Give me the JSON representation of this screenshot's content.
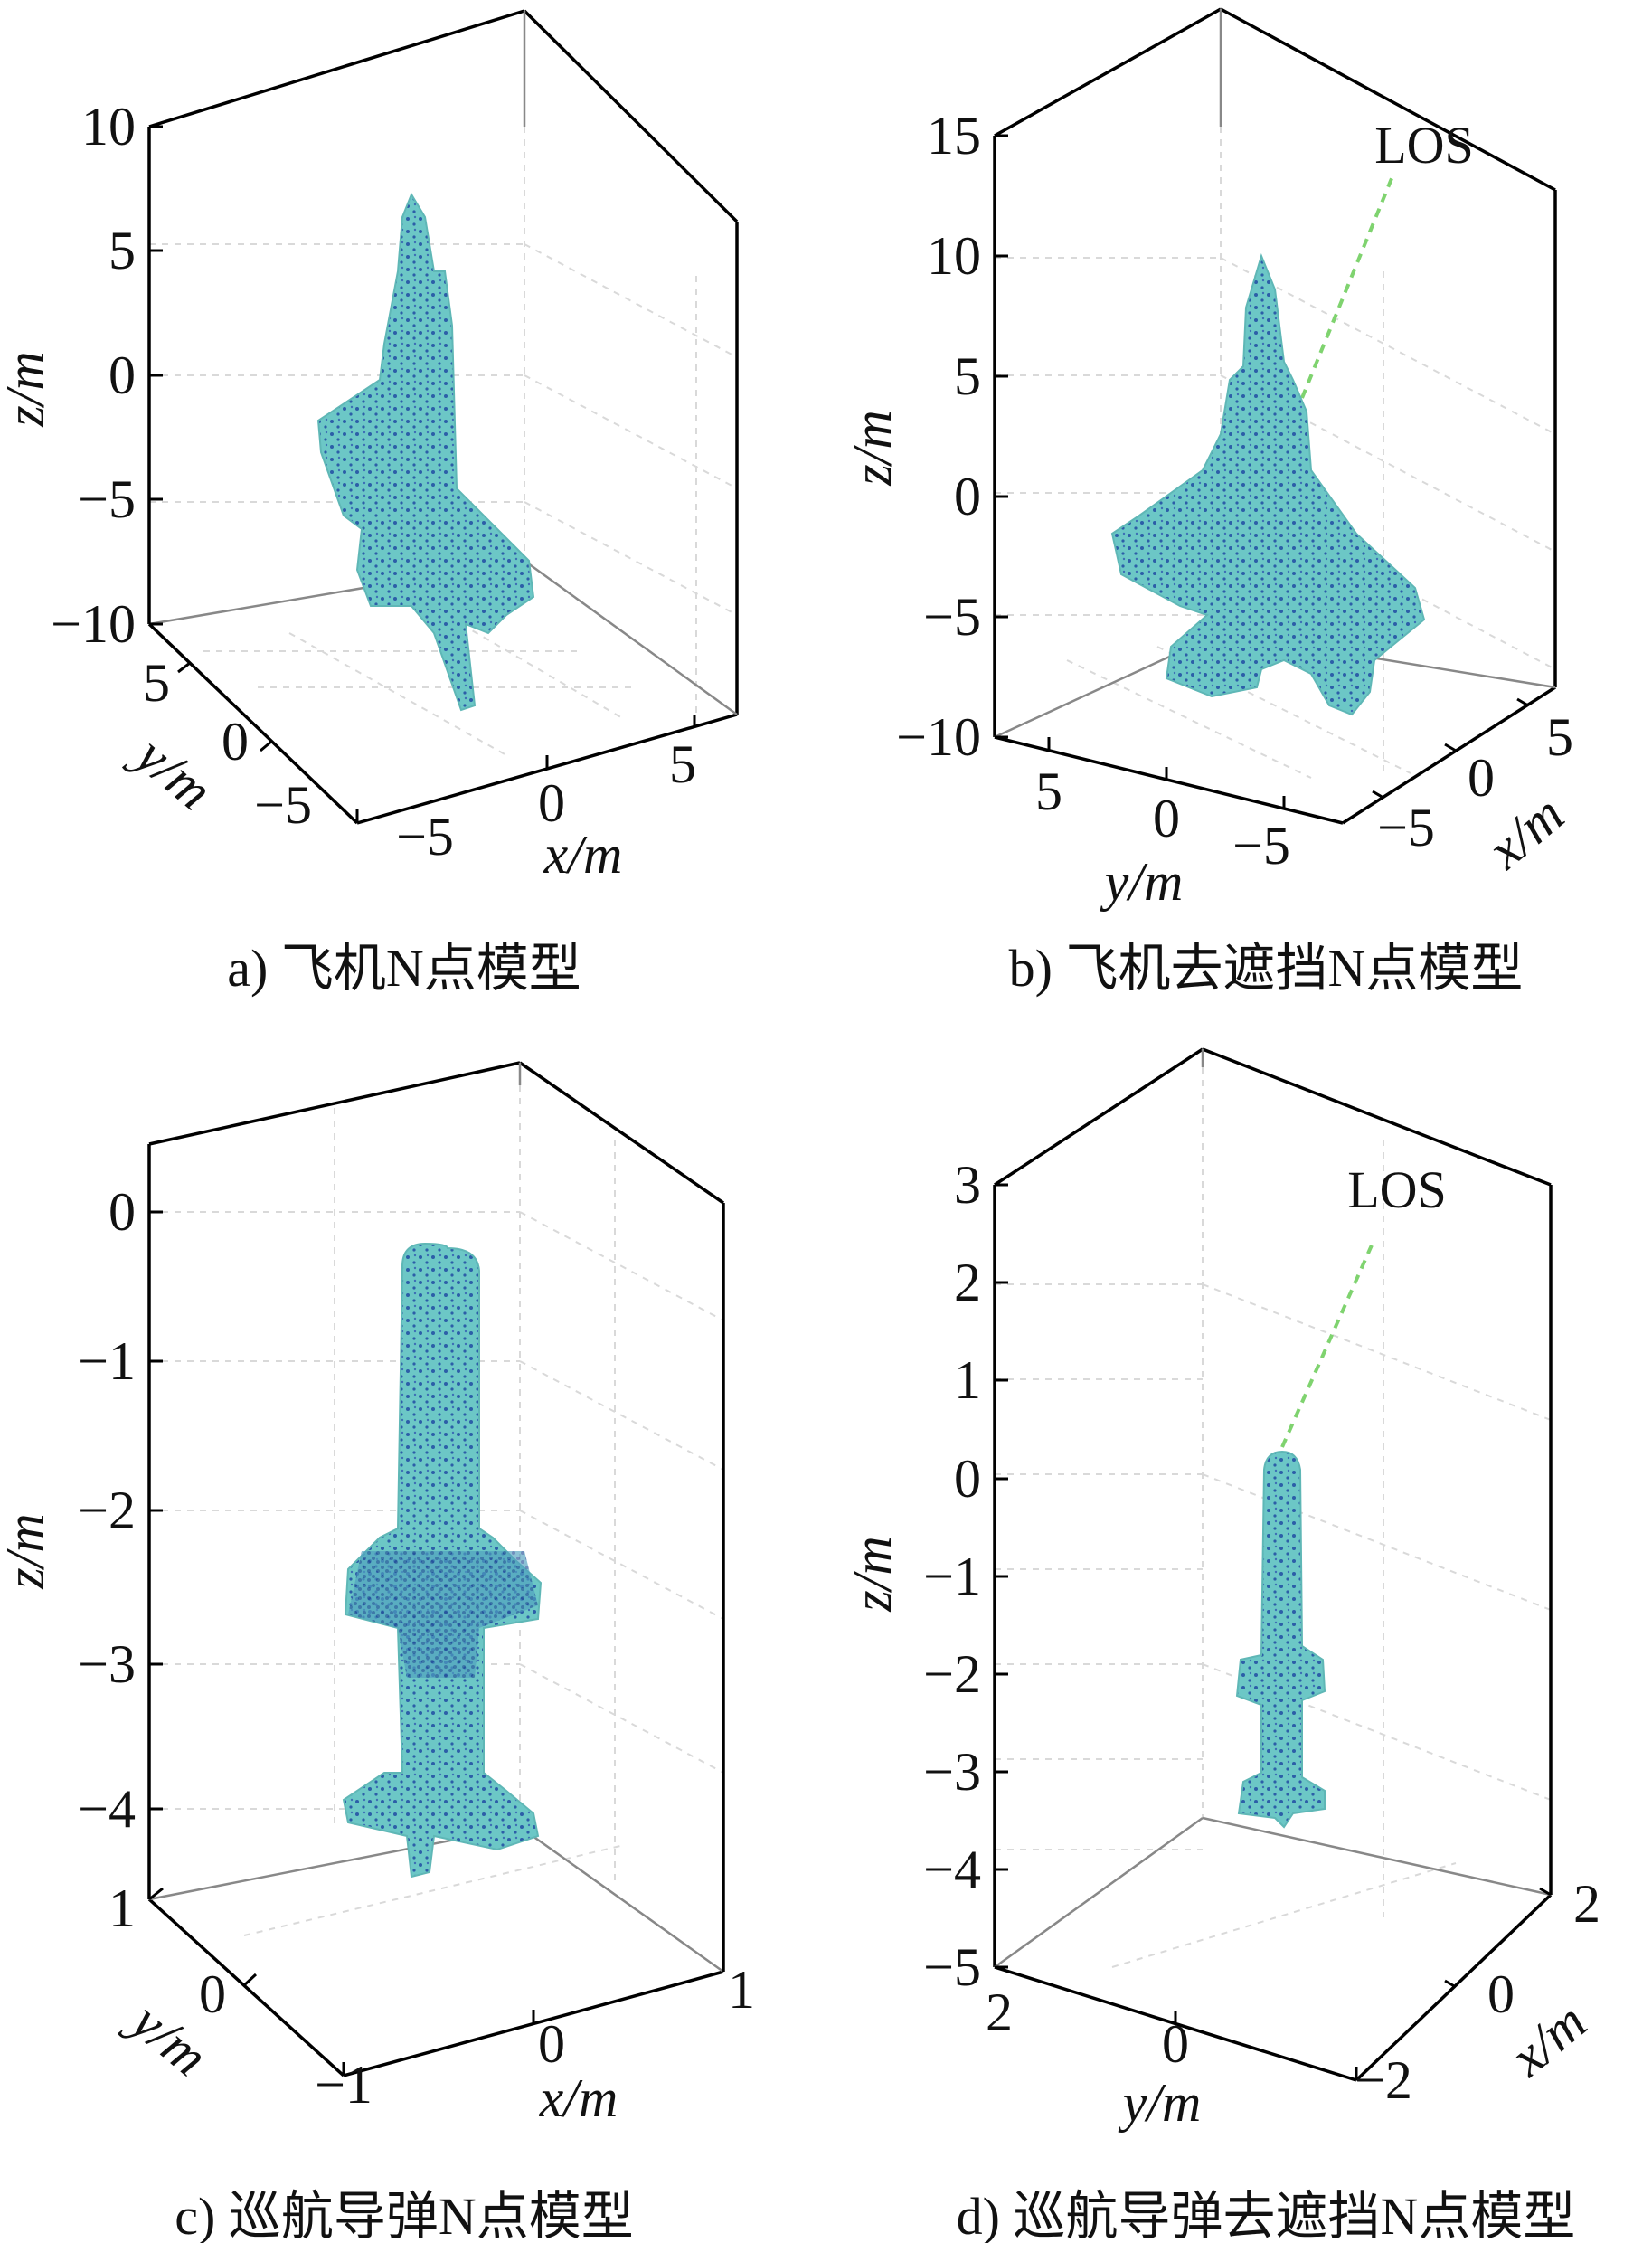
{
  "chart_data": [
    {
      "type": "scatter",
      "id": "a",
      "caption": "a) 飞机N点模型",
      "xlabel": "x/m",
      "ylabel": "y/m",
      "zlabel": "z/m",
      "z_ticks": [
        "10",
        "5",
        "0",
        "−5",
        "−10"
      ],
      "y_ticks": [
        "5",
        "0",
        "−5"
      ],
      "x_ticks": [
        "−5",
        "0",
        "5"
      ],
      "zlim": [
        -10,
        10
      ],
      "ylim": [
        -6,
        6
      ],
      "xlim": [
        -7,
        7
      ],
      "grid": true,
      "series": [
        {
          "values": [],
          "color": "#6cc7c6",
          "edge_color": "#2a5aa5"
        }
      ]
    },
    {
      "type": "scatter",
      "id": "b",
      "caption": "b) 飞机去遮挡N点模型",
      "xlabel": "x/m",
      "ylabel": "y/m",
      "zlabel": "z/m",
      "annotation": "LOS",
      "z_ticks": [
        "15",
        "10",
        "5",
        "0",
        "−5",
        "−10"
      ],
      "y_ticks": [
        "5",
        "0",
        "−5"
      ],
      "x_ticks": [
        "5",
        "0",
        "−5"
      ],
      "zlim": [
        -10,
        15
      ],
      "ylim": [
        -6,
        6
      ],
      "xlim": [
        -6,
        6
      ],
      "grid": true,
      "series": [
        {
          "values": [],
          "color": "#6cc7c6",
          "edge_color": "#2a5aa5"
        }
      ]
    },
    {
      "type": "scatter",
      "id": "c",
      "caption": "c) 巡航导弹N点模型",
      "xlabel": "x/m",
      "ylabel": "y/m",
      "zlabel": "z/m",
      "z_ticks": [
        "0",
        "−1",
        "−2",
        "−3",
        "−4"
      ],
      "y_ticks": [
        "1",
        "0"
      ],
      "x_ticks": [
        "−1",
        "0",
        "1"
      ],
      "zlim": [
        -4.5,
        0.5
      ],
      "ylim": [
        -1,
        1
      ],
      "xlim": [
        -1,
        1
      ],
      "grid": true,
      "series": [
        {
          "values": [],
          "color": "#6cc7c6",
          "edge_color": "#2a5aa5"
        }
      ]
    },
    {
      "type": "scatter",
      "id": "d",
      "caption": "d) 巡航导弹去遮挡N点模型",
      "xlabel": "x/m",
      "ylabel": "y/m",
      "zlabel": "z/m",
      "annotation": "LOS",
      "z_ticks": [
        "3",
        "2",
        "1",
        "0",
        "−1",
        "−2",
        "−3",
        "−4",
        "−5"
      ],
      "y_ticks": [
        "2",
        "0"
      ],
      "x_ticks": [
        "2",
        "0",
        "−2"
      ],
      "zlim": [
        -5,
        3
      ],
      "ylim": [
        -2,
        2
      ],
      "xlim": [
        -2,
        2
      ],
      "grid": true,
      "series": [
        {
          "values": [],
          "color": "#6cc7c6",
          "edge_color": "#2a5aa5"
        }
      ]
    }
  ]
}
